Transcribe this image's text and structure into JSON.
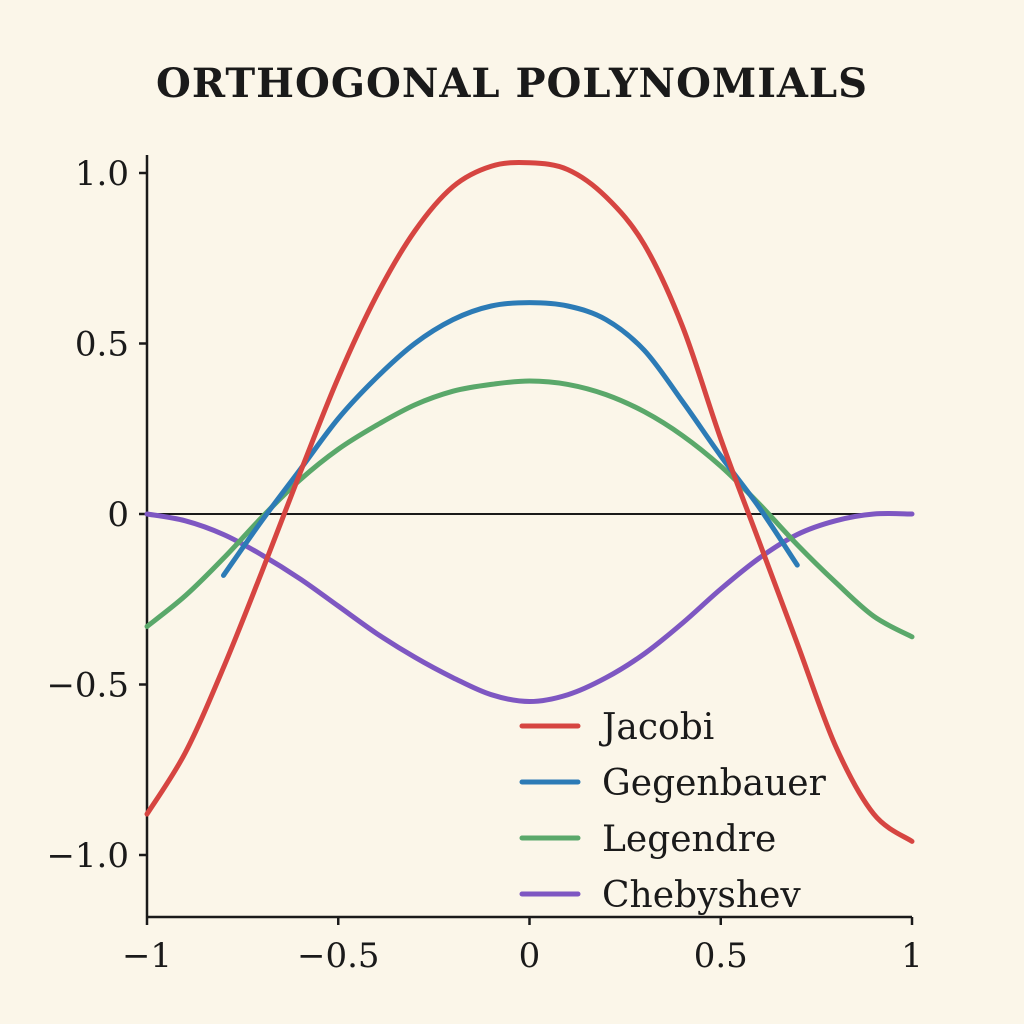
{
  "chart_data": {
    "type": "line",
    "title": "ORTHOGONAL POLYNOMIALS",
    "xlabel": "",
    "ylabel": "",
    "xlim": [
      -1,
      1
    ],
    "ylim": [
      -1.15,
      1.05
    ],
    "grid": false,
    "legend_position": "bottom-right",
    "x_ticks": [
      {
        "value": -1,
        "label": "−1"
      },
      {
        "value": -0.5,
        "label": "−0.5"
      },
      {
        "value": 0,
        "label": "0"
      },
      {
        "value": 0.5,
        "label": "0.5"
      },
      {
        "value": 1,
        "label": "1"
      }
    ],
    "y_ticks": [
      {
        "value": 1.0,
        "label": "1.0"
      },
      {
        "value": 0.5,
        "label": "0.5"
      },
      {
        "value": 0,
        "label": "0"
      },
      {
        "value": -0.5,
        "label": "−0.5"
      },
      {
        "value": -1.0,
        "label": "−1.0"
      }
    ],
    "series": [
      {
        "name": "Jacobi",
        "color": "#d64541",
        "x": [
          -1,
          -0.9,
          -0.8,
          -0.7,
          -0.6,
          -0.5,
          -0.4,
          -0.3,
          -0.2,
          -0.1,
          0,
          0.1,
          0.2,
          0.3,
          0.4,
          0.5,
          0.6,
          0.7,
          0.8,
          0.9,
          1
        ],
        "y": [
          -0.88,
          -0.7,
          -0.45,
          -0.17,
          0.12,
          0.4,
          0.64,
          0.83,
          0.96,
          1.02,
          1.03,
          1.01,
          0.93,
          0.79,
          0.55,
          0.22,
          -0.08,
          -0.38,
          -0.68,
          -0.88,
          -0.96
        ]
      },
      {
        "name": "Gegenbauer",
        "color": "#2c7bb6",
        "x": [
          -0.8,
          -0.7,
          -0.6,
          -0.5,
          -0.4,
          -0.3,
          -0.2,
          -0.1,
          0,
          0.1,
          0.2,
          0.3,
          0.4,
          0.5,
          0.6,
          0.7
        ],
        "y": [
          -0.18,
          -0.02,
          0.13,
          0.28,
          0.4,
          0.5,
          0.57,
          0.61,
          0.62,
          0.61,
          0.57,
          0.48,
          0.33,
          0.17,
          0.02,
          -0.15
        ]
      },
      {
        "name": "Legendre",
        "color": "#5aa86a",
        "x": [
          -1,
          -0.9,
          -0.8,
          -0.7,
          -0.6,
          -0.5,
          -0.4,
          -0.3,
          -0.2,
          -0.1,
          0,
          0.1,
          0.2,
          0.3,
          0.4,
          0.5,
          0.6,
          0.7,
          0.8,
          0.9,
          1
        ],
        "y": [
          -0.33,
          -0.24,
          -0.13,
          -0.01,
          0.1,
          0.19,
          0.26,
          0.32,
          0.36,
          0.38,
          0.39,
          0.38,
          0.35,
          0.3,
          0.23,
          0.14,
          0.03,
          -0.09,
          -0.2,
          -0.3,
          -0.36
        ]
      },
      {
        "name": "Chebyshev",
        "color": "#7e57c2",
        "x": [
          -1,
          -0.9,
          -0.8,
          -0.7,
          -0.6,
          -0.5,
          -0.4,
          -0.3,
          -0.2,
          -0.1,
          0,
          0.1,
          0.2,
          0.3,
          0.4,
          0.5,
          0.6,
          0.7,
          0.8,
          0.9,
          1
        ],
        "y": [
          0.0,
          -0.02,
          -0.06,
          -0.12,
          -0.19,
          -0.27,
          -0.35,
          -0.42,
          -0.48,
          -0.53,
          -0.55,
          -0.53,
          -0.48,
          -0.41,
          -0.32,
          -0.22,
          -0.13,
          -0.06,
          -0.02,
          0.0,
          0.0
        ]
      }
    ]
  }
}
